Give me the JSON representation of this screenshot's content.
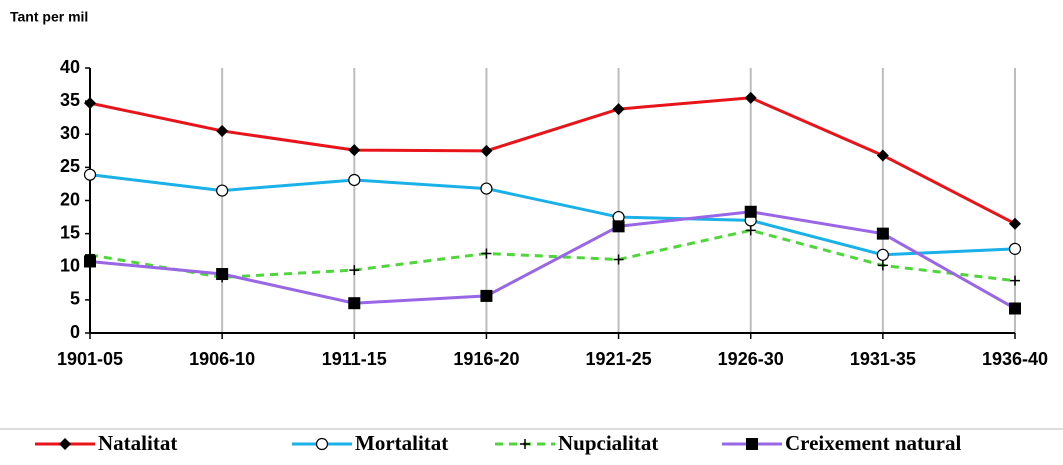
{
  "chart_data": {
    "type": "line",
    "title": "Tant per mil",
    "categories": [
      "1901-05",
      "1906-10",
      "1911-15",
      "1916-20",
      "1921-25",
      "1926-30",
      "1931-35",
      "1936-40"
    ],
    "series": [
      {
        "name": "Natalitat",
        "color": "#e8141a",
        "marker": "diamond",
        "dashed": false,
        "values": [
          34.7,
          30.5,
          27.6,
          27.5,
          33.8,
          35.5,
          26.8,
          16.5
        ]
      },
      {
        "name": "Mortalitat",
        "color": "#1ab0e8",
        "marker": "circle",
        "dashed": false,
        "values": [
          23.9,
          21.5,
          23.1,
          21.8,
          17.5,
          17.0,
          11.8,
          12.7
        ]
      },
      {
        "name": "Nupcialitat",
        "color": "#4fd63a",
        "marker": "plus",
        "dashed": true,
        "values": [
          11.8,
          8.4,
          9.5,
          12.0,
          11.1,
          15.5,
          10.2,
          7.9
        ]
      },
      {
        "name": "Creixement natural",
        "color": "#9966e6",
        "marker": "square",
        "dashed": false,
        "values": [
          10.8,
          8.9,
          4.5,
          5.6,
          16.1,
          18.3,
          15.0,
          3.7
        ]
      }
    ],
    "ylim": [
      0,
      40
    ],
    "yticks": [
      0,
      5,
      10,
      15,
      20,
      25,
      30,
      35,
      40
    ],
    "grid": "x",
    "legend": "bottom"
  }
}
